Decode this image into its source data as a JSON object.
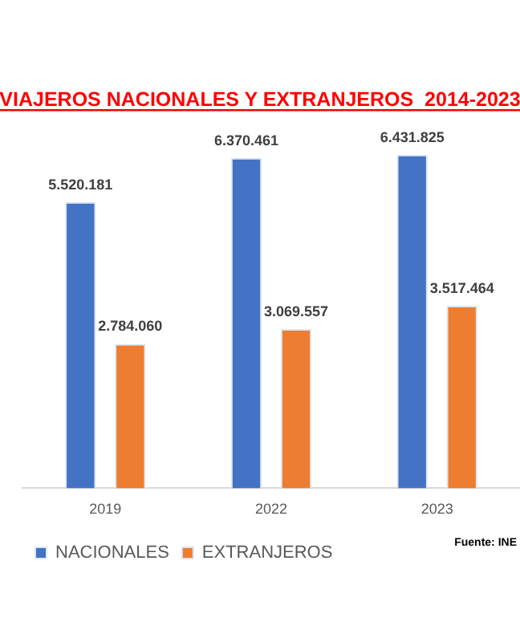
{
  "chart_data": {
    "type": "bar",
    "title": "VIAJEROS NACIONALES Y EXTRANJEROS  2014-2023",
    "categories": [
      "2019",
      "2022",
      "2023"
    ],
    "series": [
      {
        "name": "NACIONALES",
        "color": "#4472c4",
        "values": [
          5520181,
          6370461,
          6431825
        ],
        "value_labels": [
          "5.520.181",
          "6.370.461",
          "6.431.825"
        ]
      },
      {
        "name": "EXTRANJEROS",
        "color": "#ed7d31",
        "values": [
          2784060,
          3069557,
          3517464
        ],
        "value_labels": [
          "2.784.060",
          "3.069.557",
          "3.517.464"
        ]
      }
    ],
    "legend": "bottom left",
    "grid": false,
    "tick_labels": "x",
    "annotations": [
      "Fuente: INE"
    ]
  }
}
